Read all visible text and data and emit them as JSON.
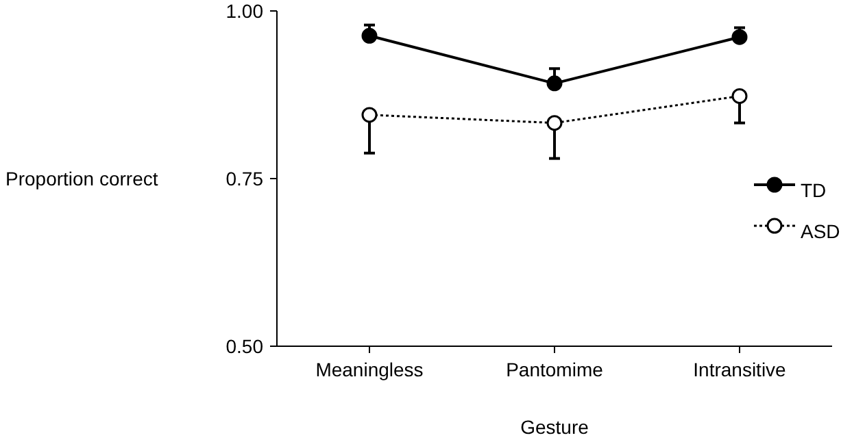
{
  "chart_data": {
    "type": "line",
    "xlabel": "Gesture",
    "ylabel": "Proportion correct",
    "categories": [
      "Meaningless",
      "Pantomime",
      "Intransitive"
    ],
    "series": [
      {
        "name": "TD",
        "color": "#000000",
        "values": [
          0.963,
          0.892,
          0.961
        ],
        "errors": [
          [
            0.963,
            0.979
          ],
          [
            0.892,
            0.914
          ],
          [
            0.961,
            0.975
          ]
        ],
        "marker": "circle",
        "line_style": "solid"
      },
      {
        "name": "ASD",
        "color": "#000000",
        "values": [
          0.845,
          0.833,
          0.873
        ],
        "errors": [
          [
            0.788,
            0.845
          ],
          [
            0.78,
            0.833
          ],
          [
            0.833,
            0.873
          ]
        ],
        "marker": "circle",
        "line_style": "dotted"
      }
    ],
    "ylim": [
      0.5,
      1.0
    ],
    "yticks": [
      {
        "value": 0.5,
        "label": "0.50"
      },
      {
        "value": 0.75,
        "label": "0.75"
      },
      {
        "value": 1.0,
        "label": "1.00"
      }
    ],
    "grid": false,
    "legend": "right"
  }
}
